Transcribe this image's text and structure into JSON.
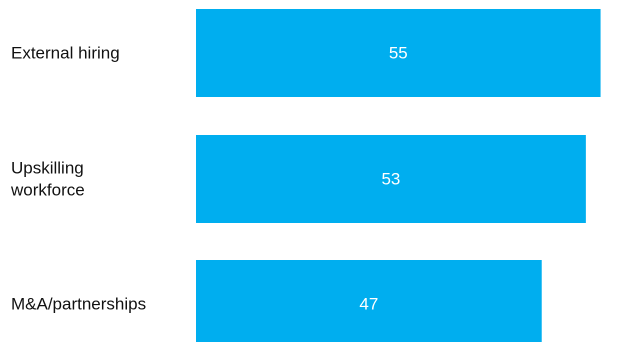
{
  "chart_data": {
    "type": "bar",
    "orientation": "horizontal",
    "categories": [
      "External hiring",
      "Upskilling workforce",
      "M&A/partnerships"
    ],
    "category_label_lines": [
      [
        "External hiring"
      ],
      [
        "Upskilling",
        "workforce"
      ],
      [
        "M&A/partnerships"
      ]
    ],
    "values": [
      55,
      53,
      47
    ],
    "data_labels": [
      "55",
      "53",
      "47"
    ],
    "xlim": [
      0,
      59
    ],
    "grid": false,
    "legend": "none",
    "bar_color": "#00AEEF",
    "label_color": "#111111",
    "value_label_color": "#FFFFFF"
  }
}
